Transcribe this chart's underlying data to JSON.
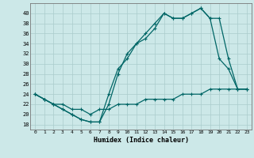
{
  "xlabel": "Humidex (Indice chaleur)",
  "bg_color": "#cce8e8",
  "line_color": "#006666",
  "grid_color": "#aacccc",
  "xlim": [
    -0.5,
    23.5
  ],
  "ylim": [
    17,
    42
  ],
  "yticks": [
    18,
    20,
    22,
    24,
    26,
    28,
    30,
    32,
    34,
    36,
    38,
    40
  ],
  "xticks": [
    0,
    1,
    2,
    3,
    4,
    5,
    6,
    7,
    8,
    9,
    10,
    11,
    12,
    13,
    14,
    15,
    16,
    17,
    18,
    19,
    20,
    21,
    22,
    23
  ],
  "line1_x": [
    0,
    1,
    2,
    3,
    4,
    5,
    6,
    7,
    8,
    9,
    10,
    11,
    12,
    13,
    14,
    15,
    16,
    17,
    18,
    19,
    20,
    21,
    22,
    23
  ],
  "line1_y": [
    24,
    23,
    22,
    21,
    20,
    19,
    18.5,
    18.5,
    24,
    29,
    31,
    34,
    35,
    37,
    40,
    39,
    39,
    40,
    41,
    39,
    31,
    29,
    25,
    25
  ],
  "line2_x": [
    0,
    1,
    2,
    3,
    4,
    5,
    6,
    7,
    8,
    9,
    10,
    11,
    12,
    13,
    14,
    15,
    16,
    17,
    18,
    19,
    20,
    21,
    22,
    23
  ],
  "line2_y": [
    24,
    23,
    22,
    21,
    20,
    19,
    18.5,
    18.5,
    22,
    28,
    32,
    34,
    36,
    38,
    40,
    39,
    39,
    40,
    41,
    39,
    39,
    31,
    25,
    25
  ],
  "line3_x": [
    0,
    1,
    2,
    3,
    4,
    5,
    6,
    7,
    8,
    9,
    10,
    11,
    12,
    13,
    14,
    15,
    16,
    17,
    18,
    19,
    20,
    21,
    22,
    23
  ],
  "line3_y": [
    24,
    23,
    22,
    22,
    21,
    21,
    20,
    21,
    21,
    22,
    22,
    22,
    23,
    23,
    23,
    23,
    24,
    24,
    24,
    25,
    25,
    25,
    25,
    25
  ]
}
